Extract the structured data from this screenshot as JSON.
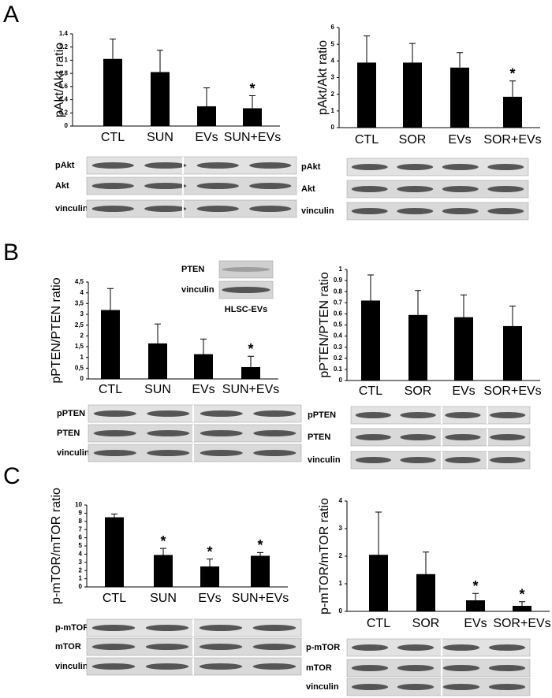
{
  "panel_labels": [
    "A",
    "B",
    "C"
  ],
  "chart_data": [
    {
      "type": "bar",
      "ylabel": "pAkt/Akt ratio",
      "categories": [
        "CTL",
        "SUN",
        "EVs",
        "SUN+EVs"
      ],
      "values": [
        1.02,
        0.82,
        0.3,
        0.27
      ],
      "errors": [
        0.3,
        0.33,
        0.28,
        0.19
      ],
      "annotations": [
        null,
        null,
        null,
        "*"
      ],
      "color": "#000000",
      "ylim": [
        0,
        1.4
      ],
      "yticks": [
        0,
        0.2,
        0.4,
        0.6,
        0.8,
        1,
        1.2,
        1.4
      ],
      "blot_labels": [
        "pAkt",
        "Akt",
        "vinculin"
      ]
    },
    {
      "type": "bar",
      "ylabel": "pAkt/Akt ratio",
      "categories": [
        "CTL",
        "SOR",
        "EVs",
        "SOR+EVs"
      ],
      "values": [
        3.9,
        3.9,
        3.6,
        1.85
      ],
      "errors": [
        1.6,
        1.15,
        0.9,
        0.95
      ],
      "annotations": [
        null,
        null,
        null,
        "*"
      ],
      "color": "#000000",
      "ylim": [
        0,
        6
      ],
      "yticks": [
        0,
        1,
        2,
        3,
        4,
        5,
        6
      ],
      "blot_labels": [
        "pAkt",
        "Akt",
        "vinculin"
      ]
    },
    {
      "type": "bar",
      "ylabel": "pPTEN/PTEN ratio",
      "categories": [
        "CTL",
        "SUN",
        "EVs",
        "SUN+EVs"
      ],
      "values": [
        3.2,
        1.65,
        1.15,
        0.55
      ],
      "errors": [
        1.0,
        0.9,
        0.7,
        0.5
      ],
      "annotations": [
        null,
        null,
        null,
        "*"
      ],
      "color": "#000000",
      "ylim": [
        0,
        4.5
      ],
      "yticks": [
        0,
        {
          "value": 0.5,
          "label": "0,5"
        },
        1,
        {
          "value": 1.5,
          "label": "1,5"
        },
        2,
        {
          "value": 2.5,
          "label": "2,5"
        },
        3,
        {
          "value": 3.5,
          "label": "3,5"
        },
        4,
        {
          "value": 4.5,
          "label": "4,5"
        }
      ],
      "blot_labels": [
        "pPTEN",
        "PTEN",
        "vinculin"
      ],
      "inset": {
        "labels": [
          "PTEN",
          "vinculin"
        ],
        "caption": "HLSC-EVs"
      }
    },
    {
      "type": "bar",
      "ylabel": "pPTEN/PTEN ratio",
      "categories": [
        "CTL",
        "SOR",
        "EVs",
        "SOR+EVs"
      ],
      "values": [
        0.72,
        0.59,
        0.57,
        0.49
      ],
      "errors": [
        0.23,
        0.22,
        0.2,
        0.18
      ],
      "annotations": [
        null,
        null,
        null,
        null
      ],
      "color": "#000000",
      "ylim": [
        0,
        1
      ],
      "yticks": [
        0,
        0.1,
        0.2,
        0.3,
        0.4,
        0.5,
        0.6,
        0.7,
        0.8,
        0.9,
        1
      ],
      "blot_labels": [
        "pPTEN",
        "PTEN",
        "vinculin"
      ]
    },
    {
      "type": "bar",
      "ylabel": "p-mTOR/mTOR ratio",
      "categories": [
        "CTL",
        "SUN",
        "EVs",
        "SUN+EVs"
      ],
      "values": [
        8.5,
        3.9,
        2.5,
        3.8
      ],
      "errors": [
        0.4,
        0.8,
        0.9,
        0.4
      ],
      "annotations": [
        null,
        "*",
        "*",
        "*"
      ],
      "color": "#000000",
      "ylim": [
        0,
        10
      ],
      "yticks": [
        0,
        1,
        2,
        3,
        4,
        5,
        6,
        7,
        8,
        9,
        10
      ],
      "blot_labels": [
        "p-mTOR",
        "mTOR",
        "vinculin"
      ]
    },
    {
      "type": "bar",
      "ylabel": "p-mTOR/mTOR ratio",
      "categories": [
        "CTL",
        "SOR",
        "EVs",
        "SOR+EVs"
      ],
      "values": [
        2.05,
        1.35,
        0.4,
        0.2
      ],
      "errors": [
        1.55,
        0.8,
        0.25,
        0.15
      ],
      "annotations": [
        null,
        null,
        "*",
        "*"
      ],
      "color": "#000000",
      "ylim": [
        0,
        4
      ],
      "yticks": [
        0,
        1,
        2,
        3,
        4
      ],
      "blot_labels": [
        "p-mTOR",
        "mTOR",
        "vinculin"
      ]
    }
  ]
}
